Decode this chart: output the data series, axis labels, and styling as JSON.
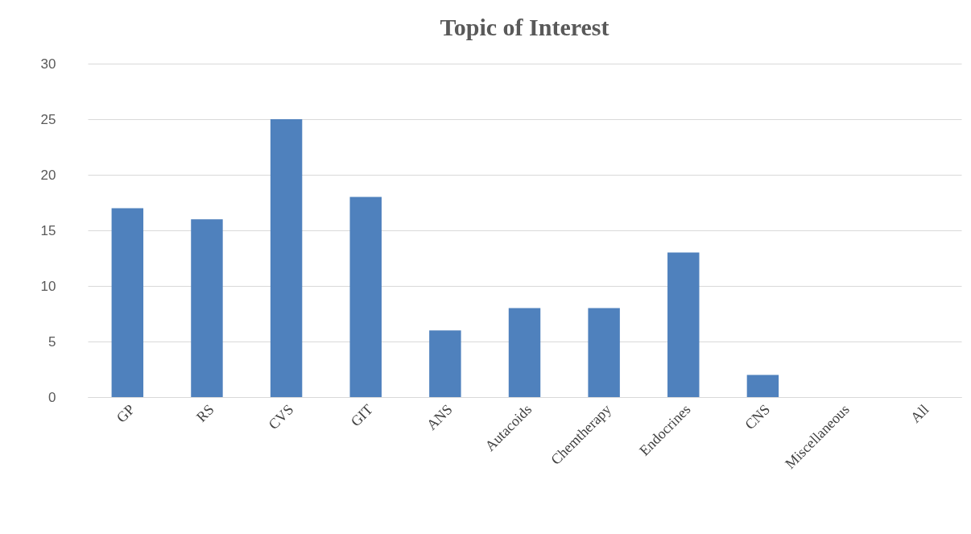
{
  "chart_data": {
    "type": "bar",
    "title": "Topic of Interest",
    "categories": [
      "GP",
      "RS",
      "CVS",
      "GIT",
      "ANS",
      "Autacoids",
      "Chemtherapy",
      "Endocrines",
      "CNS",
      "Miscellaneous",
      "All"
    ],
    "values": [
      17,
      16,
      25,
      18,
      6,
      8,
      8,
      13,
      2,
      0,
      0
    ],
    "color": "#4f81bd",
    "ylim": [
      0,
      30
    ],
    "yticks": [
      0,
      5,
      10,
      15,
      20,
      25,
      30
    ],
    "grid": "y"
  }
}
